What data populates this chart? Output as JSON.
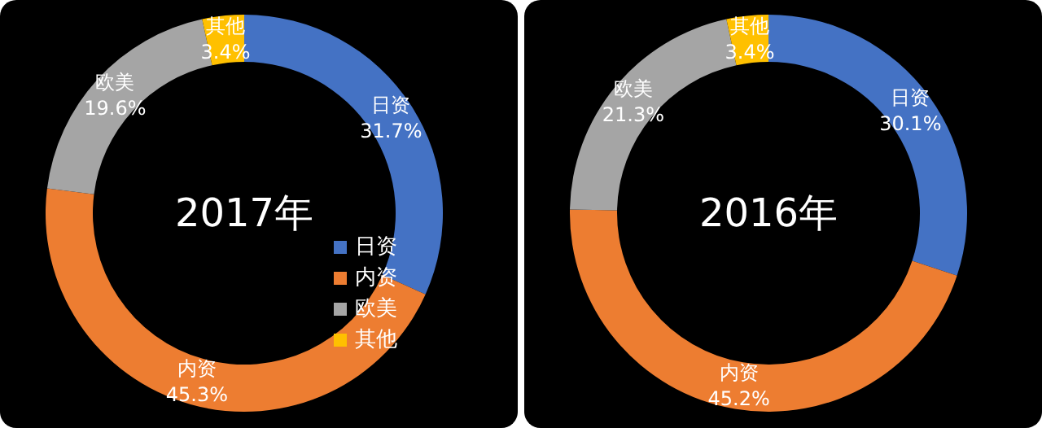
{
  "chart_data": [
    {
      "type": "donut",
      "title": "2017年",
      "categories": [
        "日资",
        "内资",
        "欧美",
        "其他"
      ],
      "values": [
        31.7,
        45.3,
        19.6,
        3.4
      ],
      "value_labels": [
        "31.7%",
        "45.3%",
        "19.6%",
        "3.4%"
      ],
      "colors": [
        "#4472c4",
        "#ed7d31",
        "#a5a5a5",
        "#ffc000"
      ],
      "legend": "right"
    },
    {
      "type": "donut",
      "title": "2016年",
      "categories": [
        "日资",
        "内资",
        "欧美",
        "其他"
      ],
      "values": [
        30.1,
        45.2,
        21.3,
        3.4
      ],
      "value_labels": [
        "30.1%",
        "45.2%",
        "21.3%",
        "3.4%"
      ],
      "colors": [
        "#4472c4",
        "#ed7d31",
        "#a5a5a5",
        "#ffc000"
      ]
    }
  ]
}
